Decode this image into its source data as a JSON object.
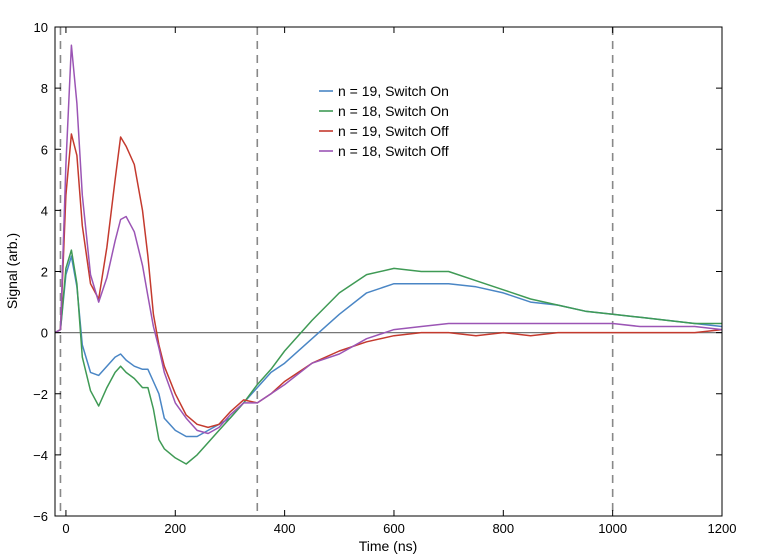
{
  "chart_data": {
    "type": "line",
    "title": "",
    "xlabel": "Time (ns)",
    "ylabel": "Signal (arb.)",
    "xlim": [
      -20,
      1200
    ],
    "ylim": [
      -6,
      10
    ],
    "xticks": [
      0,
      200,
      400,
      600,
      800,
      1000,
      1200
    ],
    "yticks": [
      -6,
      -4,
      -2,
      0,
      2,
      4,
      6,
      8,
      10
    ],
    "grid": false,
    "legend_position": "upper-center",
    "zero_line": 0,
    "vertical_dashed_lines": [
      -10,
      350,
      1000
    ],
    "series": [
      {
        "name": "n = 19, Switch On",
        "color": "#4a86c5",
        "x": [
          -20,
          -10,
          0,
          10,
          20,
          30,
          45,
          60,
          75,
          90,
          100,
          110,
          125,
          140,
          150,
          160,
          170,
          180,
          200,
          220,
          240,
          260,
          280,
          300,
          325,
          350,
          375,
          400,
          450,
          500,
          550,
          600,
          650,
          700,
          750,
          800,
          850,
          900,
          950,
          1000,
          1050,
          1100,
          1150,
          1200
        ],
        "y": [
          0,
          0.1,
          1.9,
          2.5,
          1.5,
          -0.4,
          -1.3,
          -1.4,
          -1.1,
          -0.8,
          -0.7,
          -0.9,
          -1.1,
          -1.2,
          -1.2,
          -1.6,
          -2.0,
          -2.8,
          -3.2,
          -3.4,
          -3.4,
          -3.2,
          -3.0,
          -2.8,
          -2.3,
          -1.8,
          -1.3,
          -1.0,
          -0.2,
          0.6,
          1.3,
          1.6,
          1.6,
          1.6,
          1.5,
          1.3,
          1.0,
          0.9,
          0.7,
          0.6,
          0.5,
          0.4,
          0.3,
          0.2
        ]
      },
      {
        "name": "n = 18, Switch On",
        "color": "#3f9a55",
        "x": [
          -20,
          -10,
          0,
          10,
          20,
          30,
          45,
          60,
          75,
          90,
          100,
          110,
          125,
          140,
          150,
          160,
          170,
          180,
          200,
          220,
          240,
          260,
          280,
          300,
          325,
          350,
          375,
          400,
          450,
          500,
          550,
          600,
          650,
          700,
          750,
          800,
          850,
          900,
          950,
          1000,
          1050,
          1100,
          1150,
          1200
        ],
        "y": [
          0,
          0.1,
          2.1,
          2.7,
          1.6,
          -0.8,
          -1.9,
          -2.4,
          -1.8,
          -1.3,
          -1.1,
          -1.3,
          -1.5,
          -1.8,
          -1.8,
          -2.5,
          -3.5,
          -3.8,
          -4.1,
          -4.3,
          -4.0,
          -3.6,
          -3.2,
          -2.8,
          -2.3,
          -1.7,
          -1.2,
          -0.6,
          0.4,
          1.3,
          1.9,
          2.1,
          2.0,
          2.0,
          1.7,
          1.4,
          1.1,
          0.9,
          0.7,
          0.6,
          0.5,
          0.4,
          0.3,
          0.3
        ]
      },
      {
        "name": "n = 19, Switch Off",
        "color": "#c43a2e",
        "x": [
          -20,
          -10,
          0,
          10,
          20,
          30,
          45,
          60,
          75,
          90,
          100,
          110,
          125,
          140,
          150,
          160,
          170,
          180,
          200,
          220,
          240,
          260,
          280,
          300,
          325,
          350,
          375,
          400,
          450,
          500,
          550,
          600,
          650,
          700,
          750,
          800,
          850,
          900,
          950,
          1000,
          1050,
          1100,
          1150,
          1200
        ],
        "y": [
          0,
          0.1,
          4.5,
          6.5,
          5.8,
          3.5,
          1.6,
          1.1,
          2.8,
          5.0,
          6.4,
          6.1,
          5.5,
          4.0,
          2.5,
          0.6,
          -0.4,
          -1.1,
          -2.0,
          -2.7,
          -3.0,
          -3.1,
          -3.0,
          -2.6,
          -2.2,
          -2.3,
          -2.0,
          -1.6,
          -1.0,
          -0.6,
          -0.3,
          -0.1,
          0.0,
          0.0,
          -0.1,
          0.0,
          -0.1,
          0.0,
          0.0,
          0.0,
          0.0,
          0.0,
          0.0,
          0.1
        ]
      },
      {
        "name": "n = 18, Switch Off",
        "color": "#9b55b5",
        "x": [
          -20,
          -10,
          0,
          10,
          20,
          30,
          45,
          60,
          75,
          90,
          100,
          110,
          125,
          140,
          150,
          160,
          170,
          180,
          200,
          220,
          240,
          260,
          280,
          300,
          325,
          350,
          375,
          400,
          450,
          500,
          550,
          600,
          650,
          700,
          750,
          800,
          850,
          900,
          950,
          1000,
          1050,
          1100,
          1150,
          1200
        ],
        "y": [
          0,
          0.1,
          5.5,
          9.4,
          7.5,
          4.5,
          1.9,
          1.0,
          1.8,
          3.0,
          3.7,
          3.8,
          3.3,
          2.2,
          1.2,
          0.2,
          -0.5,
          -1.3,
          -2.3,
          -2.8,
          -3.2,
          -3.3,
          -3.1,
          -2.7,
          -2.3,
          -2.3,
          -2.0,
          -1.7,
          -1.0,
          -0.7,
          -0.2,
          0.1,
          0.2,
          0.3,
          0.3,
          0.3,
          0.3,
          0.3,
          0.3,
          0.3,
          0.2,
          0.2,
          0.2,
          0.1
        ]
      }
    ]
  }
}
